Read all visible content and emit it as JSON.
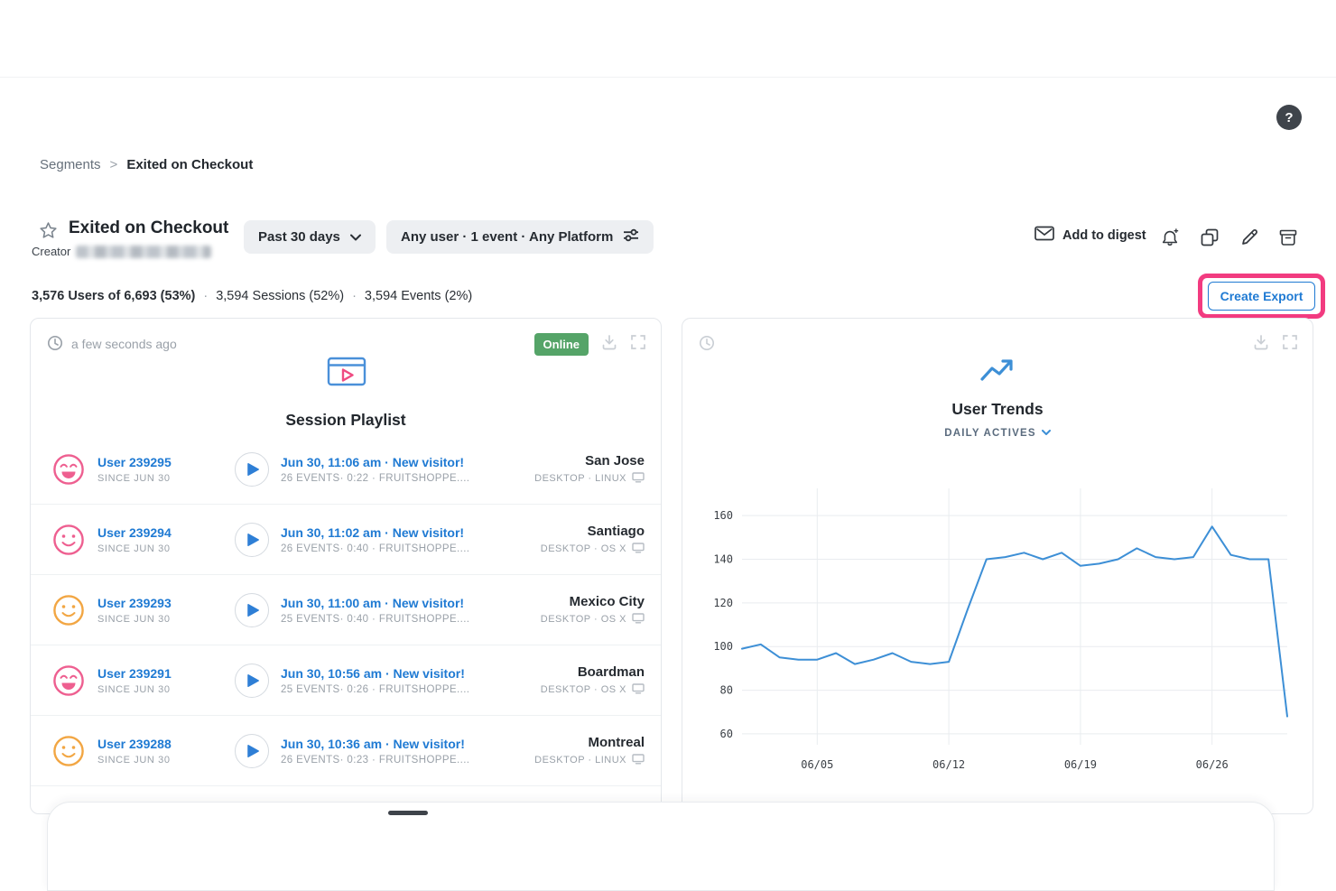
{
  "page": {
    "help_label": "?"
  },
  "breadcrumb": {
    "section": "Segments",
    "separator": ">",
    "current": "Exited on Checkout"
  },
  "header": {
    "title": "Exited on Checkout",
    "creator_label": "Creator",
    "date_range_label": "Past 30 days",
    "segment_filter_label": "Any user · 1 event · Any Platform",
    "add_to_digest_label": "Add to digest"
  },
  "stats": {
    "users_label": "3,576 Users of 6,693 (53%)",
    "dot": "·",
    "sessions_label": "3,594 Sessions (52%)",
    "events_label": "3,594 Events (2%)",
    "create_export_label": "Create Export"
  },
  "playlist_card": {
    "updated_label": "a few seconds ago",
    "online_label": "Online",
    "title": "Session Playlist",
    "rows": [
      {
        "user": "User 239295",
        "since": "SINCE JUN 30",
        "session": "Jun 30, 11:06 am · New visitor!",
        "details": "26 EVENTS· 0:22 · FRUITSHOPPE....",
        "city": "San Jose",
        "platform": "DESKTOP · LINUX",
        "avatar_color": "#ee5f90",
        "mood": "grin"
      },
      {
        "user": "User 239294",
        "since": "SINCE JUN 30",
        "session": "Jun 30, 11:02 am · New visitor!",
        "details": "26 EVENTS· 0:40 · FRUITSHOPPE....",
        "city": "Santiago",
        "platform": "DESKTOP · OS X",
        "avatar_color": "#ee5f90",
        "mood": "smile"
      },
      {
        "user": "User 239293",
        "since": "SINCE JUN 30",
        "session": "Jun 30, 11:00 am · New visitor!",
        "details": "25 EVENTS· 0:40 · FRUITSHOPPE....",
        "city": "Mexico City",
        "platform": "DESKTOP · OS X",
        "avatar_color": "#f2a643",
        "mood": "smile"
      },
      {
        "user": "User 239291",
        "since": "SINCE JUN 30",
        "session": "Jun 30, 10:56 am · New visitor!",
        "details": "25 EVENTS· 0:26 · FRUITSHOPPE....",
        "city": "Boardman",
        "platform": "DESKTOP · OS X",
        "avatar_color": "#ee5f90",
        "mood": "grin"
      },
      {
        "user": "User 239288",
        "since": "SINCE JUN 30",
        "session": "Jun 30, 10:36 am · New visitor!",
        "details": "26 EVENTS· 0:23 · FRUITSHOPPE....",
        "city": "Montreal",
        "platform": "DESKTOP · LINUX",
        "avatar_color": "#f2a643",
        "mood": "smile"
      }
    ]
  },
  "trends_card": {
    "title": "User Trends",
    "metric_label": "DAILY ACTIVES"
  },
  "chart_data": {
    "type": "line",
    "title": "User Trends",
    "metric": "DAILY ACTIVES",
    "x": [
      "06/01",
      "06/02",
      "06/03",
      "06/04",
      "06/05",
      "06/06",
      "06/07",
      "06/08",
      "06/09",
      "06/10",
      "06/11",
      "06/12",
      "06/13",
      "06/14",
      "06/15",
      "06/16",
      "06/17",
      "06/18",
      "06/19",
      "06/20",
      "06/21",
      "06/22",
      "06/23",
      "06/24",
      "06/25",
      "06/26",
      "06/27",
      "06/28",
      "06/29",
      "06/30"
    ],
    "values": [
      99,
      101,
      95,
      94,
      94,
      97,
      92,
      94,
      97,
      93,
      92,
      93,
      117,
      140,
      141,
      143,
      140,
      143,
      137,
      138,
      140,
      145,
      141,
      140,
      141,
      155,
      142,
      140,
      140,
      68
    ],
    "x_tick_indices": [
      4,
      11,
      18,
      25
    ],
    "x_tick_labels": [
      "06/05",
      "06/12",
      "06/19",
      "06/26"
    ],
    "y_ticks": [
      60,
      80,
      100,
      120,
      140,
      160
    ],
    "ylim": [
      55,
      170
    ],
    "line_color": "#3d8fd6",
    "grid": true,
    "legend": "none",
    "xlabel": "",
    "ylabel": ""
  },
  "colors": {
    "accent_blue": "#1f7ad3",
    "online_green": "#55a468",
    "highlight_pink": "#f23b80",
    "chart_line": "#3d8fd6"
  }
}
